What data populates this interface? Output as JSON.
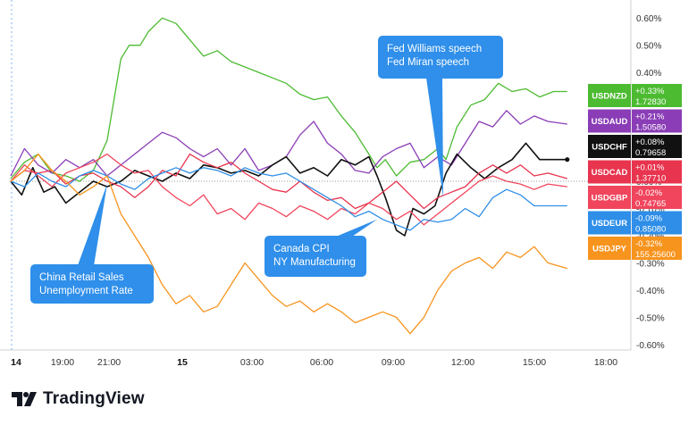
{
  "chart_data": {
    "type": "line",
    "x_ticks": [
      "14",
      "19:00",
      "21:00",
      "15",
      "03:00",
      "06:00",
      "09:00",
      "12:00",
      "15:00",
      "18:00"
    ],
    "y_ticks": [
      "0.60%",
      "0.50%",
      "0.40%",
      "0.30%",
      "0.20%",
      "0.10%",
      "0.00%",
      "-0.10%",
      "-0.20%",
      "-0.30%",
      "-0.40%",
      "-0.50%",
      "-0.60%"
    ],
    "ylim": [
      -0.62,
      0.64
    ],
    "x_range_hours": [
      0,
      23.5
    ],
    "baseline": 0,
    "grid": false,
    "series": [
      {
        "name": "USDNZD",
        "change": "+0.33%",
        "price": "1.72830",
        "color": "#4cbb31",
        "last": 0.33,
        "points": [
          [
            0,
            0.01
          ],
          [
            0.5,
            0.07
          ],
          [
            1,
            0.1
          ],
          [
            1.5,
            0.03
          ],
          [
            2,
            0.02
          ],
          [
            2.5,
            0.0
          ],
          [
            3,
            0.04
          ],
          [
            3.5,
            0.15
          ],
          [
            4,
            0.45
          ],
          [
            4.3,
            0.5
          ],
          [
            4.7,
            0.5
          ],
          [
            5,
            0.55
          ],
          [
            5.5,
            0.6
          ],
          [
            6,
            0.58
          ],
          [
            6.5,
            0.52
          ],
          [
            7,
            0.46
          ],
          [
            7.5,
            0.48
          ],
          [
            8,
            0.44
          ],
          [
            8.5,
            0.42
          ],
          [
            9,
            0.4
          ],
          [
            9.5,
            0.38
          ],
          [
            10,
            0.36
          ],
          [
            10.5,
            0.32
          ],
          [
            11,
            0.3
          ],
          [
            11.5,
            0.31
          ],
          [
            12,
            0.24
          ],
          [
            12.5,
            0.18
          ],
          [
            13,
            0.1
          ],
          [
            13.3,
            0.05
          ],
          [
            13.6,
            0.08
          ],
          [
            14,
            0.02
          ],
          [
            14.5,
            0.07
          ],
          [
            15,
            0.08
          ],
          [
            15.5,
            0.12
          ],
          [
            15.8,
            0.08
          ],
          [
            16.2,
            0.2
          ],
          [
            16.7,
            0.28
          ],
          [
            17.2,
            0.3
          ],
          [
            17.7,
            0.36
          ],
          [
            18.2,
            0.33
          ],
          [
            18.7,
            0.34
          ],
          [
            19.2,
            0.31
          ],
          [
            19.7,
            0.33
          ],
          [
            20.2,
            0.33
          ]
        ]
      },
      {
        "name": "USDAUD",
        "change": "+0.21%",
        "price": "1.50580",
        "color": "#8a3db6",
        "last": 0.21,
        "points": [
          [
            0,
            0.02
          ],
          [
            0.5,
            0.12
          ],
          [
            1,
            0.06
          ],
          [
            1.5,
            0.03
          ],
          [
            2,
            0.08
          ],
          [
            2.5,
            0.05
          ],
          [
            3,
            0.08
          ],
          [
            3.5,
            0.02
          ],
          [
            4,
            0.06
          ],
          [
            4.5,
            0.1
          ],
          [
            5,
            0.14
          ],
          [
            5.5,
            0.18
          ],
          [
            6,
            0.16
          ],
          [
            6.5,
            0.12
          ],
          [
            7,
            0.09
          ],
          [
            7.5,
            0.12
          ],
          [
            8,
            0.06
          ],
          [
            8.5,
            0.12
          ],
          [
            9,
            0.04
          ],
          [
            9.5,
            0.06
          ],
          [
            10,
            0.09
          ],
          [
            10.5,
            0.17
          ],
          [
            11,
            0.22
          ],
          [
            11.5,
            0.14
          ],
          [
            12,
            0.1
          ],
          [
            12.5,
            0.04
          ],
          [
            13,
            0.03
          ],
          [
            13.5,
            0.09
          ],
          [
            14,
            0.12
          ],
          [
            14.5,
            0.14
          ],
          [
            15,
            0.05
          ],
          [
            15.5,
            0.09
          ],
          [
            16,
            0.06
          ],
          [
            16.5,
            0.14
          ],
          [
            17,
            0.22
          ],
          [
            17.5,
            0.2
          ],
          [
            18,
            0.26
          ],
          [
            18.5,
            0.21
          ],
          [
            19,
            0.24
          ],
          [
            19.5,
            0.22
          ],
          [
            20.2,
            0.21
          ]
        ]
      },
      {
        "name": "USDCHF",
        "change": "+0.08%",
        "price": "0.79658",
        "color": "#111111",
        "last": 0.08,
        "points": [
          [
            0,
            0.0
          ],
          [
            0.4,
            -0.05
          ],
          [
            0.8,
            0.05
          ],
          [
            1.2,
            -0.04
          ],
          [
            1.6,
            -0.02
          ],
          [
            2,
            -0.08
          ],
          [
            2.5,
            -0.04
          ],
          [
            3,
            0.0
          ],
          [
            3.5,
            -0.02
          ],
          [
            4,
            0.0
          ],
          [
            4.5,
            0.04
          ],
          [
            5,
            0.02
          ],
          [
            5.5,
            0.0
          ],
          [
            6,
            0.03
          ],
          [
            6.5,
            0.01
          ],
          [
            7,
            0.06
          ],
          [
            7.5,
            0.05
          ],
          [
            8,
            0.03
          ],
          [
            8.5,
            0.04
          ],
          [
            9,
            0.02
          ],
          [
            9.5,
            0.06
          ],
          [
            10,
            0.09
          ],
          [
            10.5,
            0.03
          ],
          [
            11,
            0.05
          ],
          [
            11.5,
            0.02
          ],
          [
            12,
            0.08
          ],
          [
            12.5,
            0.06
          ],
          [
            13,
            0.09
          ],
          [
            13.3,
            0.02
          ],
          [
            13.6,
            -0.06
          ],
          [
            14,
            -0.18
          ],
          [
            14.3,
            -0.2
          ],
          [
            14.6,
            -0.1
          ],
          [
            15,
            -0.12
          ],
          [
            15.4,
            -0.09
          ],
          [
            15.8,
            0.03
          ],
          [
            16.2,
            0.1
          ],
          [
            16.7,
            0.05
          ],
          [
            17.2,
            0.01
          ],
          [
            17.7,
            0.05
          ],
          [
            18.2,
            0.08
          ],
          [
            18.7,
            0.14
          ],
          [
            19.2,
            0.08
          ],
          [
            19.7,
            0.08
          ],
          [
            20.2,
            0.08
          ]
        ]
      },
      {
        "name": "USDCAD",
        "change": "+0.01%",
        "price": "1.37710",
        "color": "#e8344e",
        "last": 0.01,
        "points": [
          [
            0,
            0.0
          ],
          [
            0.5,
            0.04
          ],
          [
            1,
            0.03
          ],
          [
            1.5,
            0.04
          ],
          [
            2,
            -0.01
          ],
          [
            2.5,
            0.02
          ],
          [
            3,
            0.03
          ],
          [
            3.5,
            0.0
          ],
          [
            4,
            -0.02
          ],
          [
            4.5,
            -0.06
          ],
          [
            5,
            -0.02
          ],
          [
            5.5,
            0.04
          ],
          [
            6,
            0.02
          ],
          [
            6.5,
            0.1
          ],
          [
            7,
            0.07
          ],
          [
            7.5,
            0.05
          ],
          [
            8,
            0.07
          ],
          [
            8.5,
            0.03
          ],
          [
            9,
            0.0
          ],
          [
            9.5,
            -0.03
          ],
          [
            10,
            -0.04
          ],
          [
            10.5,
            0.0
          ],
          [
            11,
            -0.04
          ],
          [
            11.5,
            -0.07
          ],
          [
            12,
            -0.06
          ],
          [
            12.5,
            -0.1
          ],
          [
            13,
            -0.08
          ],
          [
            13.5,
            -0.04
          ],
          [
            14,
            0.0
          ],
          [
            14.5,
            -0.05
          ],
          [
            15,
            -0.1
          ],
          [
            15.5,
            -0.06
          ],
          [
            16,
            -0.04
          ],
          [
            16.5,
            -0.02
          ],
          [
            17,
            0.03
          ],
          [
            17.5,
            0.06
          ],
          [
            18,
            0.03
          ],
          [
            18.5,
            0.06
          ],
          [
            19,
            0.02
          ],
          [
            19.5,
            0.03
          ],
          [
            20.2,
            0.01
          ]
        ]
      },
      {
        "name": "USDGBP",
        "change": "-0.02%",
        "price": "0.74765",
        "color": "#f0455c",
        "last": -0.02,
        "points": [
          [
            0,
            0.0
          ],
          [
            0.5,
            0.06
          ],
          [
            1,
            0.02
          ],
          [
            1.5,
            -0.02
          ],
          [
            2,
            0.03
          ],
          [
            2.5,
            0.05
          ],
          [
            3,
            0.07
          ],
          [
            3.5,
            0.1
          ],
          [
            4,
            0.06
          ],
          [
            4.5,
            0.03
          ],
          [
            5,
            0.04
          ],
          [
            5.5,
            -0.02
          ],
          [
            6,
            -0.06
          ],
          [
            6.5,
            -0.09
          ],
          [
            7,
            -0.05
          ],
          [
            7.5,
            -0.12
          ],
          [
            8,
            -0.1
          ],
          [
            8.5,
            -0.14
          ],
          [
            9,
            -0.08
          ],
          [
            9.5,
            -0.1
          ],
          [
            10,
            -0.13
          ],
          [
            10.5,
            -0.09
          ],
          [
            11,
            -0.11
          ],
          [
            11.5,
            -0.14
          ],
          [
            12,
            -0.1
          ],
          [
            12.5,
            -0.12
          ],
          [
            13,
            -0.08
          ],
          [
            13.5,
            -0.1
          ],
          [
            14,
            -0.14
          ],
          [
            14.5,
            -0.11
          ],
          [
            15,
            -0.16
          ],
          [
            15.5,
            -0.12
          ],
          [
            16,
            -0.08
          ],
          [
            16.5,
            -0.04
          ],
          [
            17,
            0.0
          ],
          [
            17.5,
            0.02
          ],
          [
            18,
            0.0
          ],
          [
            18.5,
            -0.01
          ],
          [
            19,
            -0.03
          ],
          [
            19.5,
            -0.01
          ],
          [
            20.2,
            -0.02
          ]
        ]
      },
      {
        "name": "USDEUR",
        "change": "-0.09%",
        "price": "0.85080",
        "color": "#2e8ee8",
        "last": -0.09,
        "points": [
          [
            0,
            0.0
          ],
          [
            0.5,
            -0.02
          ],
          [
            1,
            0.03
          ],
          [
            1.5,
            0.0
          ],
          [
            2,
            -0.02
          ],
          [
            2.5,
            0.02
          ],
          [
            3,
            0.04
          ],
          [
            3.5,
            0.02
          ],
          [
            4,
            -0.01
          ],
          [
            4.5,
            -0.03
          ],
          [
            5,
            0.01
          ],
          [
            5.5,
            0.03
          ],
          [
            6,
            0.05
          ],
          [
            6.5,
            0.03
          ],
          [
            7,
            0.05
          ],
          [
            7.5,
            0.04
          ],
          [
            8,
            0.02
          ],
          [
            8.5,
            0.05
          ],
          [
            9,
            0.03
          ],
          [
            9.5,
            0.02
          ],
          [
            10,
            0.03
          ],
          [
            10.5,
            0.0
          ],
          [
            11,
            -0.03
          ],
          [
            11.5,
            -0.06
          ],
          [
            12,
            -0.09
          ],
          [
            12.5,
            -0.13
          ],
          [
            13,
            -0.11
          ],
          [
            13.5,
            -0.14
          ],
          [
            14,
            -0.16
          ],
          [
            14.5,
            -0.18
          ],
          [
            15,
            -0.14
          ],
          [
            15.5,
            -0.15
          ],
          [
            16,
            -0.14
          ],
          [
            16.5,
            -0.1
          ],
          [
            17,
            -0.13
          ],
          [
            17.5,
            -0.06
          ],
          [
            18,
            -0.03
          ],
          [
            18.5,
            -0.05
          ],
          [
            19,
            -0.09
          ],
          [
            19.5,
            -0.09
          ],
          [
            20.2,
            -0.09
          ]
        ]
      },
      {
        "name": "USDJPY",
        "change": "-0.32%",
        "price": "155.25600",
        "color": "#f7941e",
        "last": -0.32,
        "points": [
          [
            0,
            0.0
          ],
          [
            0.5,
            0.04
          ],
          [
            1,
            0.1
          ],
          [
            1.5,
            0.04
          ],
          [
            2,
            0.0
          ],
          [
            2.5,
            -0.05
          ],
          [
            3,
            -0.02
          ],
          [
            3.5,
            0.02
          ],
          [
            4,
            -0.12
          ],
          [
            4.5,
            -0.2
          ],
          [
            5,
            -0.28
          ],
          [
            5.5,
            -0.38
          ],
          [
            6,
            -0.45
          ],
          [
            6.5,
            -0.42
          ],
          [
            7,
            -0.48
          ],
          [
            7.5,
            -0.46
          ],
          [
            8,
            -0.38
          ],
          [
            8.5,
            -0.3
          ],
          [
            9,
            -0.36
          ],
          [
            9.5,
            -0.42
          ],
          [
            10,
            -0.46
          ],
          [
            10.5,
            -0.44
          ],
          [
            11,
            -0.48
          ],
          [
            11.5,
            -0.45
          ],
          [
            12,
            -0.48
          ],
          [
            12.5,
            -0.52
          ],
          [
            13,
            -0.5
          ],
          [
            13.5,
            -0.48
          ],
          [
            14,
            -0.5
          ],
          [
            14.5,
            -0.56
          ],
          [
            15,
            -0.5
          ],
          [
            15.5,
            -0.4
          ],
          [
            16,
            -0.33
          ],
          [
            16.5,
            -0.3
          ],
          [
            17,
            -0.28
          ],
          [
            17.5,
            -0.32
          ],
          [
            18,
            -0.26
          ],
          [
            18.5,
            -0.28
          ],
          [
            19,
            -0.24
          ],
          [
            19.5,
            -0.3
          ],
          [
            20.2,
            -0.32
          ]
        ]
      }
    ],
    "annotations": [
      {
        "lines": [
          "China Retail Sales",
          "Unemployment Rate"
        ],
        "x": 3.5,
        "y": -0.01
      },
      {
        "lines": [
          "Canada CPI",
          "NY Manufacturing"
        ],
        "x": 13.3,
        "y": -0.14
      },
      {
        "lines": [
          "Fed Williams speech",
          "Fed Miran speech"
        ],
        "x": 15.7,
        "y": -0.06
      }
    ],
    "colors": {
      "callout": "#2f8fea",
      "baseline": "#999999",
      "axis_text": "#333333"
    }
  },
  "brand": {
    "name": "TradingView",
    "logo_icon": "tradingview-logo-icon"
  }
}
